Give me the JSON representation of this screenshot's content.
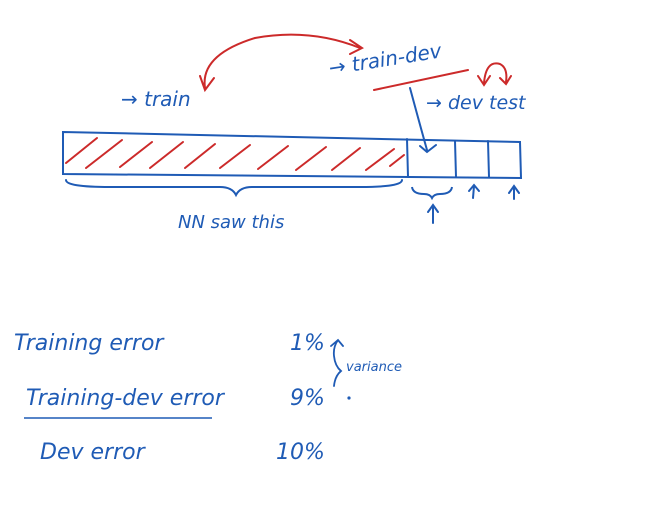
{
  "diagram": {
    "labels": {
      "train": "→ train",
      "train_dev": "→ train-dev",
      "dev_test": "→ dev test",
      "nn_saw_this": "NN saw this",
      "variance": "variance"
    },
    "errors": [
      {
        "name": "Training error",
        "value": "1%"
      },
      {
        "name": "Training-dev error",
        "value": "9%"
      },
      {
        "name": "Dev error",
        "value": "10%"
      }
    ],
    "colors": {
      "blue_ink": "#1f5bb5",
      "red_ink": "#cc2a2a",
      "background": "#ffffff"
    }
  }
}
